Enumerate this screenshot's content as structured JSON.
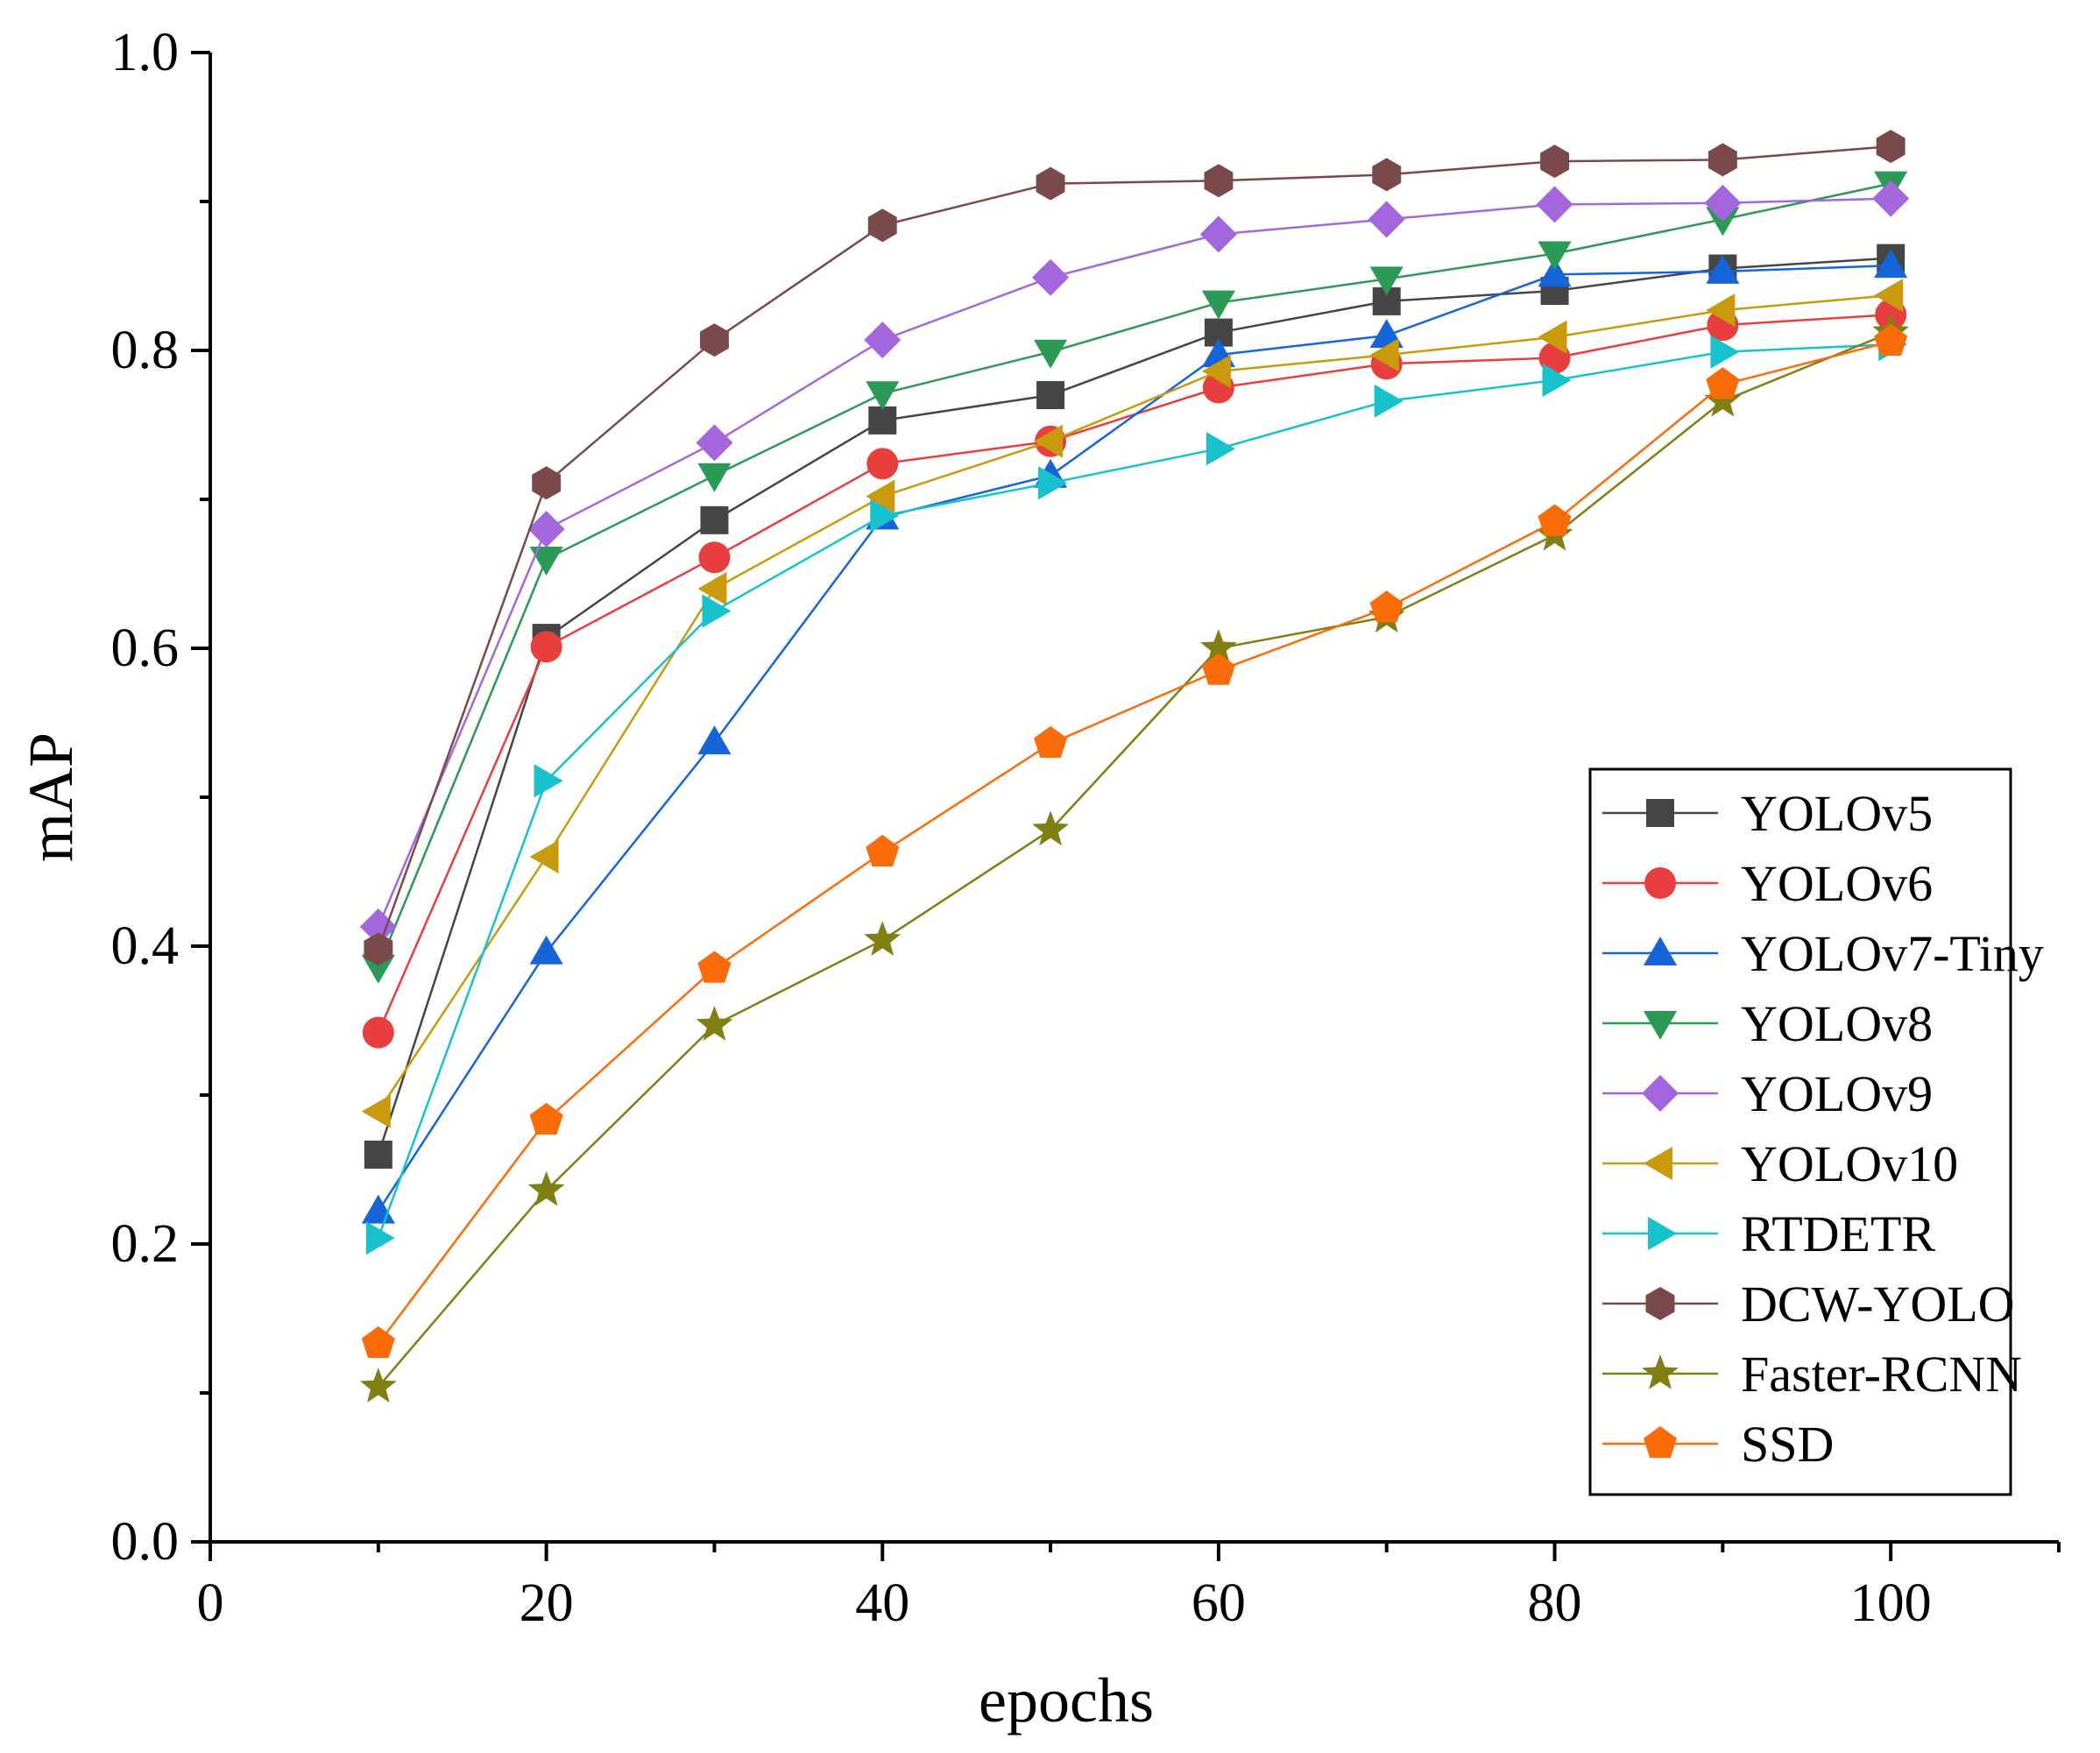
{
  "chart_data": {
    "type": "line",
    "title": "",
    "xlabel": "epochs",
    "ylabel": "mAP",
    "xlim": [
      0,
      110
    ],
    "ylim": [
      0,
      1.0
    ],
    "x_ticks": [
      0,
      20,
      40,
      60,
      80,
      100
    ],
    "y_ticks": [
      0.0,
      0.2,
      0.4,
      0.6,
      0.8,
      1.0
    ],
    "x_tick_labels": [
      "0",
      "20",
      "40",
      "60",
      "80",
      "100"
    ],
    "y_tick_labels": [
      "0.0",
      "0.2",
      "0.4",
      "0.6",
      "0.8",
      "1.0"
    ],
    "legend_position": "bottom-right",
    "x": [
      10,
      20,
      30,
      40,
      50,
      60,
      70,
      80,
      90,
      100
    ],
    "series": [
      {
        "name": "YOLOv5",
        "color": "#454545",
        "marker": "square",
        "values": [
          0.26,
          0.607,
          0.686,
          0.753,
          0.77,
          0.812,
          0.833,
          0.84,
          0.855,
          0.862
        ]
      },
      {
        "name": "YOLOv6",
        "color": "#e83e3e",
        "marker": "circle",
        "values": [
          0.342,
          0.601,
          0.661,
          0.724,
          0.739,
          0.775,
          0.791,
          0.795,
          0.817,
          0.824
        ]
      },
      {
        "name": "YOLOv7-Tiny",
        "color": "#1665d8",
        "marker": "triangle-up",
        "values": [
          0.222,
          0.396,
          0.537,
          0.688,
          0.716,
          0.797,
          0.81,
          0.851,
          0.853,
          0.857
        ]
      },
      {
        "name": "YOLOv8",
        "color": "#2a9a56",
        "marker": "triangle-down",
        "values": [
          0.386,
          0.66,
          0.716,
          0.771,
          0.799,
          0.832,
          0.848,
          0.865,
          0.888,
          0.912
        ]
      },
      {
        "name": "YOLOv9",
        "color": "#a466dd",
        "marker": "diamond",
        "values": [
          0.413,
          0.68,
          0.738,
          0.807,
          0.849,
          0.878,
          0.888,
          0.898,
          0.899,
          0.902
        ]
      },
      {
        "name": "YOLOv10",
        "color": "#c89a0c",
        "marker": "triangle-left",
        "values": [
          0.289,
          0.46,
          0.64,
          0.702,
          0.739,
          0.786,
          0.797,
          0.809,
          0.827,
          0.837
        ]
      },
      {
        "name": "RTDETR",
        "color": "#17c2cc",
        "marker": "triangle-right",
        "values": [
          0.204,
          0.511,
          0.625,
          0.689,
          0.711,
          0.734,
          0.766,
          0.78,
          0.799,
          0.804
        ]
      },
      {
        "name": "DCW-YOLO",
        "color": "#7a4a4a",
        "marker": "hexagon",
        "values": [
          0.398,
          0.711,
          0.807,
          0.884,
          0.912,
          0.914,
          0.918,
          0.927,
          0.928,
          0.937
        ]
      },
      {
        "name": "Faster-RCNN",
        "color": "#7f7f14",
        "marker": "star",
        "values": [
          0.104,
          0.236,
          0.347,
          0.404,
          0.478,
          0.6,
          0.621,
          0.676,
          0.766,
          0.812
        ]
      },
      {
        "name": "SSD",
        "color": "#fa6b0a",
        "marker": "pentagon",
        "values": [
          0.133,
          0.283,
          0.385,
          0.463,
          0.536,
          0.585,
          0.627,
          0.685,
          0.777,
          0.806
        ]
      }
    ]
  }
}
